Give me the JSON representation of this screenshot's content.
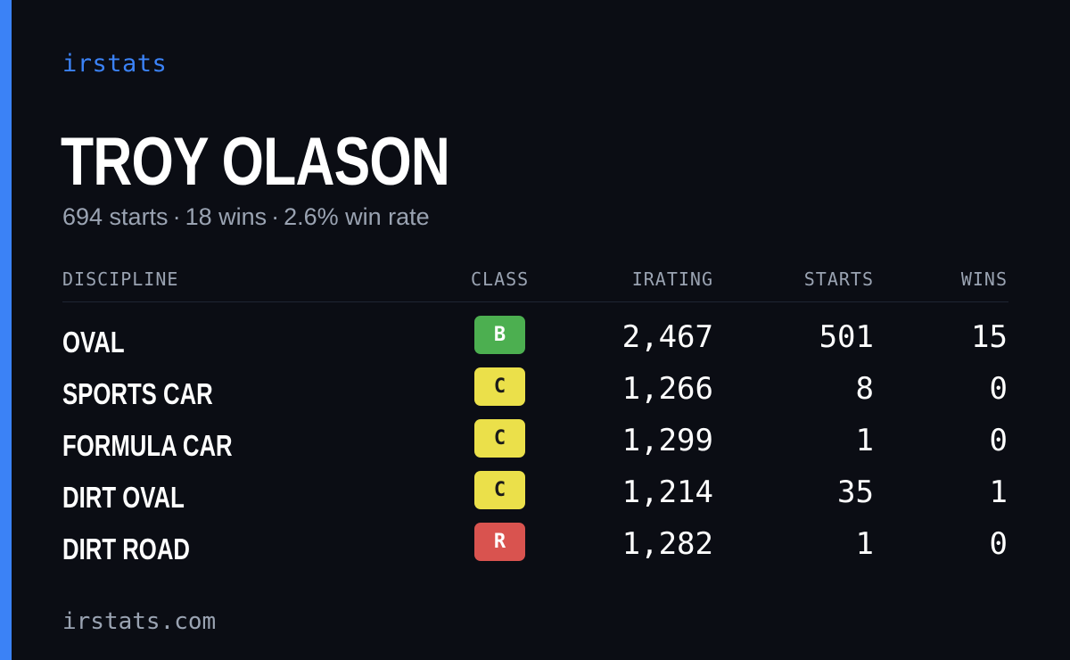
{
  "brand": "irstats",
  "player": {
    "name": "TROY OLASON",
    "summary": {
      "starts": "694 starts",
      "wins": "18 wins",
      "win_rate": "2.6% win rate",
      "separator": "·"
    }
  },
  "table": {
    "headers": {
      "discipline": "DISCIPLINE",
      "class": "CLASS",
      "irating": "IRATING",
      "starts": "STARTS",
      "wins": "WINS"
    },
    "rows": [
      {
        "discipline": "OVAL",
        "class": "B",
        "class_color": "#4caf50",
        "class_text_color": "#ffffff",
        "irating": "2,467",
        "starts": "501",
        "wins": "15"
      },
      {
        "discipline": "SPORTS CAR",
        "class": "C",
        "class_color": "#ebe04a",
        "class_text_color": "#1a1a1a",
        "irating": "1,266",
        "starts": "8",
        "wins": "0"
      },
      {
        "discipline": "FORMULA CAR",
        "class": "C",
        "class_color": "#ebe04a",
        "class_text_color": "#1a1a1a",
        "irating": "1,299",
        "starts": "1",
        "wins": "0"
      },
      {
        "discipline": "DIRT OVAL",
        "class": "C",
        "class_color": "#ebe04a",
        "class_text_color": "#1a1a1a",
        "irating": "1,214",
        "starts": "35",
        "wins": "1"
      },
      {
        "discipline": "DIRT ROAD",
        "class": "R",
        "class_color": "#d9534f",
        "class_text_color": "#ffffff",
        "irating": "1,282",
        "starts": "1",
        "wins": "0"
      }
    ]
  },
  "footer": "irstats.com",
  "colors": {
    "background": "#0b0d14",
    "accent": "#3b82f6",
    "muted_text": "#9aa3b2",
    "primary_text": "#ffffff"
  }
}
